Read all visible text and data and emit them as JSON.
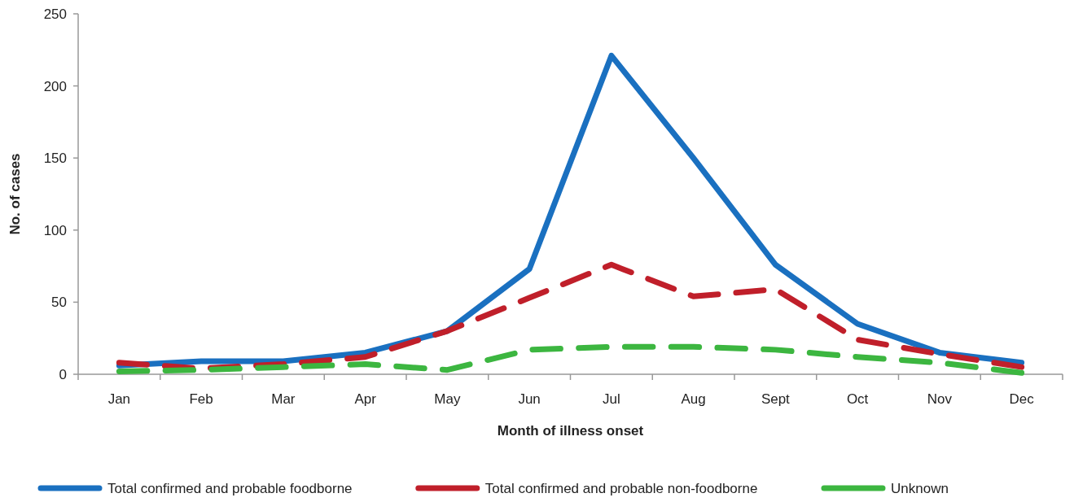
{
  "chart_data": {
    "type": "line",
    "xlabel": "Month of illness onset",
    "ylabel": "No. of cases",
    "categories": [
      "Jan",
      "Feb",
      "Mar",
      "Apr",
      "May",
      "Jun",
      "Jul",
      "Aug",
      "Sept",
      "Oct",
      "Nov",
      "Dec"
    ],
    "series": [
      {
        "name": "Total confirmed and probable foodborne",
        "color": "#1a70c0",
        "line_style": "solid",
        "values": [
          6,
          9,
          9,
          15,
          30,
          73,
          221,
          150,
          76,
          35,
          15,
          8
        ]
      },
      {
        "name": "Total confirmed and probable non-foodborne",
        "color": "#c01f2a",
        "line_style": "dashed",
        "values": [
          8,
          4,
          7,
          12,
          30,
          53,
          76,
          54,
          59,
          24,
          14,
          5
        ]
      },
      {
        "name": "Unknown",
        "color": "#3cb640",
        "line_style": "dashed",
        "values": [
          2,
          3,
          5,
          7,
          3,
          17,
          19,
          19,
          17,
          12,
          8,
          1
        ]
      }
    ],
    "ylim": [
      0,
      250
    ],
    "yticks": [
      0,
      50,
      100,
      150,
      200,
      250
    ],
    "grid": false,
    "legend": "bottom",
    "marker": "none"
  }
}
